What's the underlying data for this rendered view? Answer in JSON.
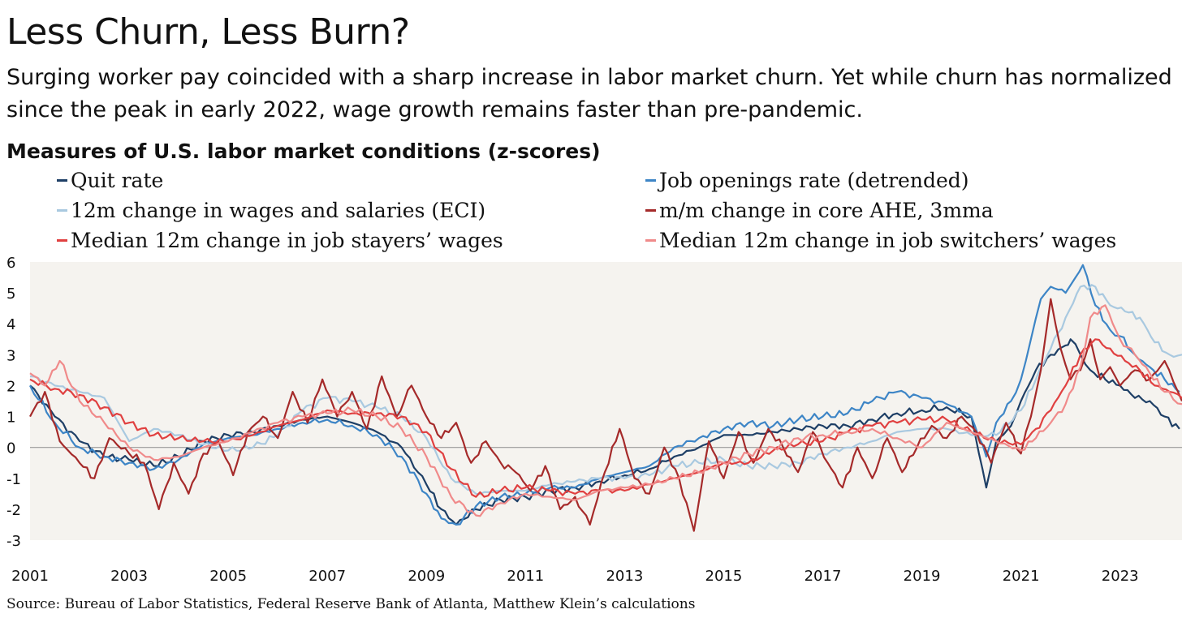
{
  "title": "Less Churn, Less Burn?",
  "subtitle": "Surging worker pay coincided with a sharp increase in labor market churn. Yet while churn has normalized since the peak in early 2022, wage growth remains faster than pre-pandemic.",
  "source": "Source: Bureau of Labor Statistics, Federal Reserve Bank of Atlanta, Matthew Klein’s calculations",
  "colors": {
    "plot_bg": "#f5f3ef",
    "zero_line": "#9a9a9a"
  },
  "chart_data": {
    "type": "line",
    "title": "Measures of U.S. labor market conditions (z-scores)",
    "xlabel": "",
    "ylabel": "",
    "xlim": [
      2001.0,
      2024.25
    ],
    "ylim": [
      -3,
      6
    ],
    "yticks": [
      6,
      5,
      4,
      3,
      2,
      1,
      0,
      -1,
      -2,
      -3
    ],
    "xticks": [
      "2001",
      "2003",
      "2005",
      "2007",
      "2009",
      "2011",
      "2013",
      "2015",
      "2017",
      "2019",
      "2021",
      "2023"
    ],
    "legend_position": "top",
    "grid": false,
    "series": [
      {
        "name": "Quit rate",
        "color": "#1e3f66",
        "x": [
          2001.0,
          2001.5,
          2002.0,
          2002.5,
          2003.0,
          2003.5,
          2004.0,
          2004.5,
          2005.0,
          2005.5,
          2006.0,
          2006.5,
          2007.0,
          2007.5,
          2008.0,
          2008.5,
          2009.0,
          2009.3,
          2009.6,
          2010.0,
          2010.5,
          2011.0,
          2011.5,
          2012.0,
          2012.5,
          2013.0,
          2013.5,
          2014.0,
          2014.5,
          2015.0,
          2015.5,
          2016.0,
          2016.5,
          2017.0,
          2017.5,
          2018.0,
          2018.5,
          2019.0,
          2019.5,
          2020.0,
          2020.3,
          2020.5,
          2020.8,
          2021.0,
          2021.3,
          2021.6,
          2021.9,
          2022.0,
          2022.2,
          2022.4,
          2022.7,
          2023.0,
          2023.3,
          2023.6,
          2023.9,
          2024.2
        ],
        "values": [
          2.0,
          1.0,
          0.2,
          -0.3,
          -0.4,
          -0.6,
          -0.3,
          0.2,
          0.4,
          0.5,
          0.7,
          0.9,
          1.0,
          0.8,
          0.5,
          0.0,
          -1.2,
          -2.0,
          -2.5,
          -2.0,
          -1.7,
          -1.6,
          -1.4,
          -1.3,
          -1.1,
          -0.9,
          -0.7,
          -0.3,
          0.0,
          0.4,
          0.4,
          0.5,
          0.6,
          0.7,
          0.7,
          0.9,
          1.1,
          1.2,
          1.3,
          1.0,
          -1.3,
          0.2,
          0.7,
          1.5,
          2.5,
          3.0,
          3.3,
          3.5,
          3.0,
          2.5,
          2.2,
          2.0,
          1.6,
          1.5,
          1.0,
          0.6
        ]
      },
      {
        "name": "Job openings rate (detrended)",
        "color": "#3d85c6",
        "x": [
          2001.0,
          2001.5,
          2002.0,
          2002.5,
          2003.0,
          2003.5,
          2004.0,
          2004.5,
          2005.0,
          2005.5,
          2006.0,
          2006.5,
          2007.0,
          2007.5,
          2008.0,
          2008.5,
          2009.0,
          2009.3,
          2009.6,
          2010.0,
          2010.5,
          2011.0,
          2011.5,
          2012.0,
          2012.5,
          2013.0,
          2013.5,
          2014.0,
          2014.5,
          2015.0,
          2015.5,
          2016.0,
          2016.5,
          2017.0,
          2017.5,
          2018.0,
          2018.5,
          2019.0,
          2019.5,
          2020.0,
          2020.3,
          2020.5,
          2020.8,
          2021.0,
          2021.2,
          2021.4,
          2021.6,
          2021.9,
          2022.1,
          2022.25,
          2022.5,
          2022.8,
          2023.0,
          2023.3,
          2023.6,
          2023.9,
          2024.2
        ],
        "values": [
          2.0,
          0.8,
          0.0,
          -0.3,
          -0.5,
          -0.7,
          -0.4,
          0.1,
          0.3,
          0.4,
          0.6,
          0.8,
          0.9,
          0.7,
          0.4,
          -0.3,
          -1.5,
          -2.3,
          -2.5,
          -1.9,
          -1.6,
          -1.5,
          -1.3,
          -1.3,
          -1.0,
          -0.8,
          -0.6,
          0.0,
          0.3,
          0.6,
          0.8,
          0.7,
          0.9,
          1.0,
          1.1,
          1.5,
          1.8,
          1.6,
          1.4,
          1.0,
          -0.3,
          0.8,
          1.5,
          2.2,
          3.5,
          4.8,
          5.2,
          5.0,
          5.5,
          5.9,
          4.6,
          3.8,
          3.6,
          3.0,
          2.6,
          2.2,
          1.8
        ]
      },
      {
        "name": "12m change in wages and salaries (ECI)",
        "color": "#a9c9e0",
        "x": [
          2001.0,
          2001.5,
          2002.0,
          2002.5,
          2003.0,
          2003.5,
          2004.0,
          2004.5,
          2005.0,
          2005.5,
          2006.0,
          2006.5,
          2007.0,
          2007.5,
          2008.0,
          2008.5,
          2009.0,
          2009.5,
          2010.0,
          2010.5,
          2011.0,
          2011.5,
          2012.0,
          2012.5,
          2013.0,
          2013.5,
          2014.0,
          2014.5,
          2015.0,
          2015.5,
          2016.0,
          2016.5,
          2017.0,
          2017.5,
          2018.0,
          2018.5,
          2019.0,
          2019.5,
          2020.0,
          2020.5,
          2021.0,
          2021.3,
          2021.6,
          2021.9,
          2022.2,
          2022.5,
          2022.8,
          2023.1,
          2023.4,
          2023.7,
          2024.0,
          2024.25
        ],
        "values": [
          2.3,
          2.0,
          1.8,
          1.6,
          0.2,
          0.6,
          0.4,
          0.1,
          -0.1,
          0.0,
          0.4,
          1.2,
          1.6,
          1.5,
          1.3,
          1.0,
          0.3,
          -1.0,
          -1.5,
          -1.4,
          -1.4,
          -1.2,
          -1.1,
          -1.0,
          -1.0,
          -0.9,
          -0.6,
          -0.5,
          -0.4,
          -0.6,
          -0.6,
          -0.5,
          -0.2,
          0.0,
          0.2,
          0.5,
          0.6,
          0.6,
          0.4,
          0.4,
          1.2,
          2.2,
          3.2,
          4.2,
          5.2,
          5.2,
          4.6,
          4.4,
          4.2,
          3.4,
          3.0,
          3.0
        ]
      },
      {
        "name": "m/m change in core AHE, 3mma",
        "color": "#a52a2a",
        "x": [
          2001.0,
          2001.3,
          2001.6,
          2002.0,
          2002.3,
          2002.6,
          2003.0,
          2003.3,
          2003.6,
          2003.9,
          2004.2,
          2004.5,
          2004.8,
          2005.1,
          2005.4,
          2005.7,
          2006.0,
          2006.3,
          2006.6,
          2006.9,
          2007.2,
          2007.5,
          2007.8,
          2008.1,
          2008.4,
          2008.7,
          2009.0,
          2009.3,
          2009.6,
          2009.9,
          2010.2,
          2010.5,
          2010.8,
          2011.1,
          2011.4,
          2011.7,
          2012.0,
          2012.3,
          2012.6,
          2012.9,
          2013.2,
          2013.5,
          2013.8,
          2014.1,
          2014.4,
          2014.7,
          2015.0,
          2015.3,
          2015.6,
          2015.9,
          2016.2,
          2016.5,
          2016.8,
          2017.1,
          2017.4,
          2017.7,
          2018.0,
          2018.3,
          2018.6,
          2018.9,
          2019.2,
          2019.5,
          2019.8,
          2020.1,
          2020.4,
          2020.7,
          2021.0,
          2021.2,
          2021.4,
          2021.6,
          2021.8,
          2022.0,
          2022.2,
          2022.4,
          2022.6,
          2022.8,
          2023.0,
          2023.3,
          2023.6,
          2023.9,
          2024.25
        ],
        "values": [
          1.0,
          1.8,
          0.2,
          -0.5,
          -1.0,
          0.3,
          -0.2,
          -0.5,
          -2.0,
          -0.5,
          -1.5,
          -0.2,
          0.2,
          -0.9,
          0.5,
          1.0,
          0.3,
          1.8,
          0.8,
          2.2,
          1.0,
          1.8,
          0.6,
          2.3,
          1.0,
          2.0,
          1.0,
          0.3,
          0.8,
          -0.5,
          0.2,
          -0.5,
          -0.8,
          -1.4,
          -0.6,
          -2.0,
          -1.6,
          -2.5,
          -0.8,
          0.6,
          -1.0,
          -1.5,
          0.0,
          -1.0,
          -2.7,
          0.2,
          -1.0,
          0.5,
          -0.5,
          0.6,
          0.0,
          -0.8,
          0.5,
          -0.5,
          -1.3,
          0.0,
          -1.0,
          0.3,
          -0.8,
          0.0,
          0.7,
          0.3,
          1.0,
          0.5,
          -0.5,
          0.8,
          -0.2,
          1.0,
          2.5,
          4.8,
          3.2,
          2.2,
          2.5,
          3.5,
          2.2,
          2.6,
          2.0,
          2.5,
          2.2,
          2.8,
          1.5
        ]
      },
      {
        "name": "Median 12m change in job stayers’ wages",
        "color": "#e04040",
        "x": [
          2001.0,
          2001.5,
          2002.0,
          2002.5,
          2003.0,
          2003.5,
          2004.0,
          2004.5,
          2005.0,
          2005.5,
          2006.0,
          2006.5,
          2007.0,
          2007.5,
          2008.0,
          2008.5,
          2009.0,
          2009.5,
          2010.0,
          2010.5,
          2011.0,
          2011.5,
          2012.0,
          2012.5,
          2013.0,
          2013.5,
          2014.0,
          2014.5,
          2015.0,
          2015.5,
          2016.0,
          2016.5,
          2017.0,
          2017.5,
          2018.0,
          2018.5,
          2019.0,
          2019.5,
          2020.0,
          2020.5,
          2021.0,
          2021.3,
          2021.6,
          2021.9,
          2022.2,
          2022.5,
          2022.8,
          2023.1,
          2023.4,
          2023.7,
          2024.0,
          2024.25
        ],
        "values": [
          2.2,
          1.9,
          1.7,
          1.3,
          0.8,
          0.4,
          0.3,
          0.2,
          0.2,
          0.4,
          0.7,
          0.9,
          1.2,
          1.1,
          1.1,
          1.0,
          0.5,
          -0.7,
          -1.6,
          -1.4,
          -1.3,
          -1.4,
          -1.5,
          -1.4,
          -1.4,
          -1.2,
          -1.0,
          -0.8,
          -0.5,
          -0.5,
          -0.1,
          0.1,
          0.2,
          0.5,
          0.7,
          0.8,
          0.9,
          0.9,
          0.5,
          0.2,
          0.1,
          0.6,
          1.2,
          2.0,
          3.0,
          3.5,
          3.2,
          2.8,
          2.5,
          2.0,
          1.8,
          1.6
        ]
      },
      {
        "name": "Median 12m change in job switchers’ wages",
        "color": "#f08a8a",
        "x": [
          2001.0,
          2001.3,
          2001.6,
          2002.0,
          2002.5,
          2003.0,
          2003.5,
          2004.0,
          2004.5,
          2005.0,
          2005.5,
          2006.0,
          2006.5,
          2007.0,
          2007.5,
          2008.0,
          2008.5,
          2009.0,
          2009.5,
          2010.0,
          2010.5,
          2011.0,
          2011.5,
          2012.0,
          2012.5,
          2013.0,
          2013.5,
          2014.0,
          2014.5,
          2015.0,
          2015.5,
          2016.0,
          2016.5,
          2017.0,
          2017.5,
          2018.0,
          2018.5,
          2019.0,
          2019.5,
          2020.0,
          2020.5,
          2021.0,
          2021.3,
          2021.6,
          2021.9,
          2022.2,
          2022.4,
          2022.7,
          2023.0,
          2023.3,
          2023.6,
          2023.9,
          2024.25
        ],
        "values": [
          2.4,
          2.0,
          2.8,
          1.5,
          0.8,
          0.0,
          -0.4,
          -0.3,
          0.0,
          0.2,
          0.5,
          0.8,
          1.0,
          1.1,
          1.2,
          1.0,
          0.6,
          -0.3,
          -1.6,
          -2.2,
          -1.8,
          -1.5,
          -1.6,
          -1.7,
          -1.4,
          -1.3,
          -1.2,
          -1.0,
          -0.8,
          -0.5,
          -0.2,
          0.0,
          0.3,
          0.4,
          0.5,
          0.6,
          0.3,
          0.0,
          0.8,
          0.5,
          0.2,
          -0.1,
          0.3,
          0.8,
          1.4,
          2.6,
          4.2,
          4.6,
          3.5,
          3.0,
          2.4,
          1.8,
          1.4
        ]
      }
    ]
  }
}
